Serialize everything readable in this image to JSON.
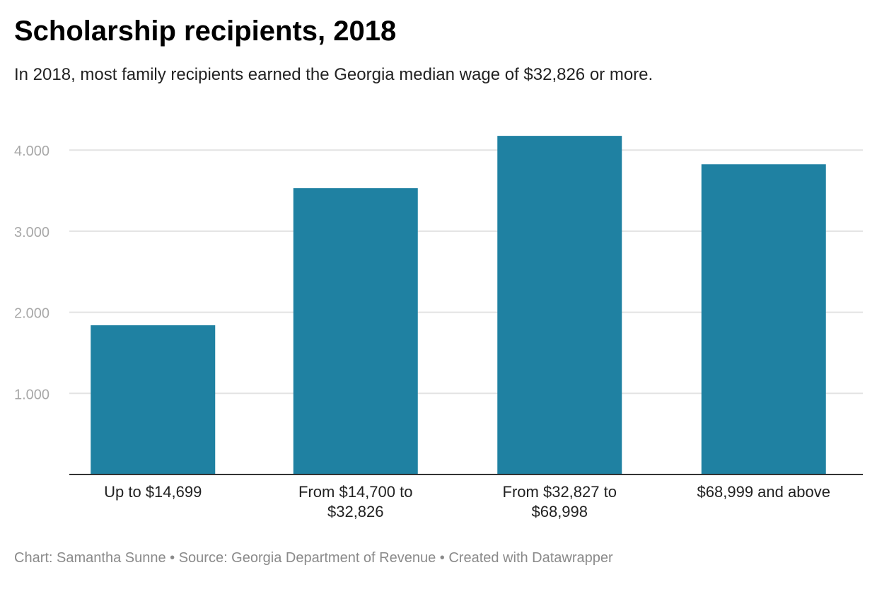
{
  "chart_data": {
    "type": "bar",
    "title": "Scholarship recipients, 2018",
    "subtitle": "In 2018, most family recipients earned the Georgia median wage of $32,826 or more.",
    "categories": [
      [
        "Up to $14,699"
      ],
      [
        "From $14,700 to",
        "$32,826"
      ],
      [
        "From $32,827 to",
        "$68,998"
      ],
      [
        "$68,999 and above"
      ]
    ],
    "values": [
      1840,
      3530,
      4175,
      3825
    ],
    "yticks": [
      1000,
      2000,
      3000,
      4000
    ],
    "ytick_labels": [
      "1.000",
      "2.000",
      "3.000",
      "4.000"
    ],
    "ylim": [
      0,
      4200
    ],
    "grid": true,
    "bar_color": "#1f81a2",
    "footer": "Chart: Samantha Sunne • Source: Georgia Department of Revenue • Created with Datawrapper"
  }
}
